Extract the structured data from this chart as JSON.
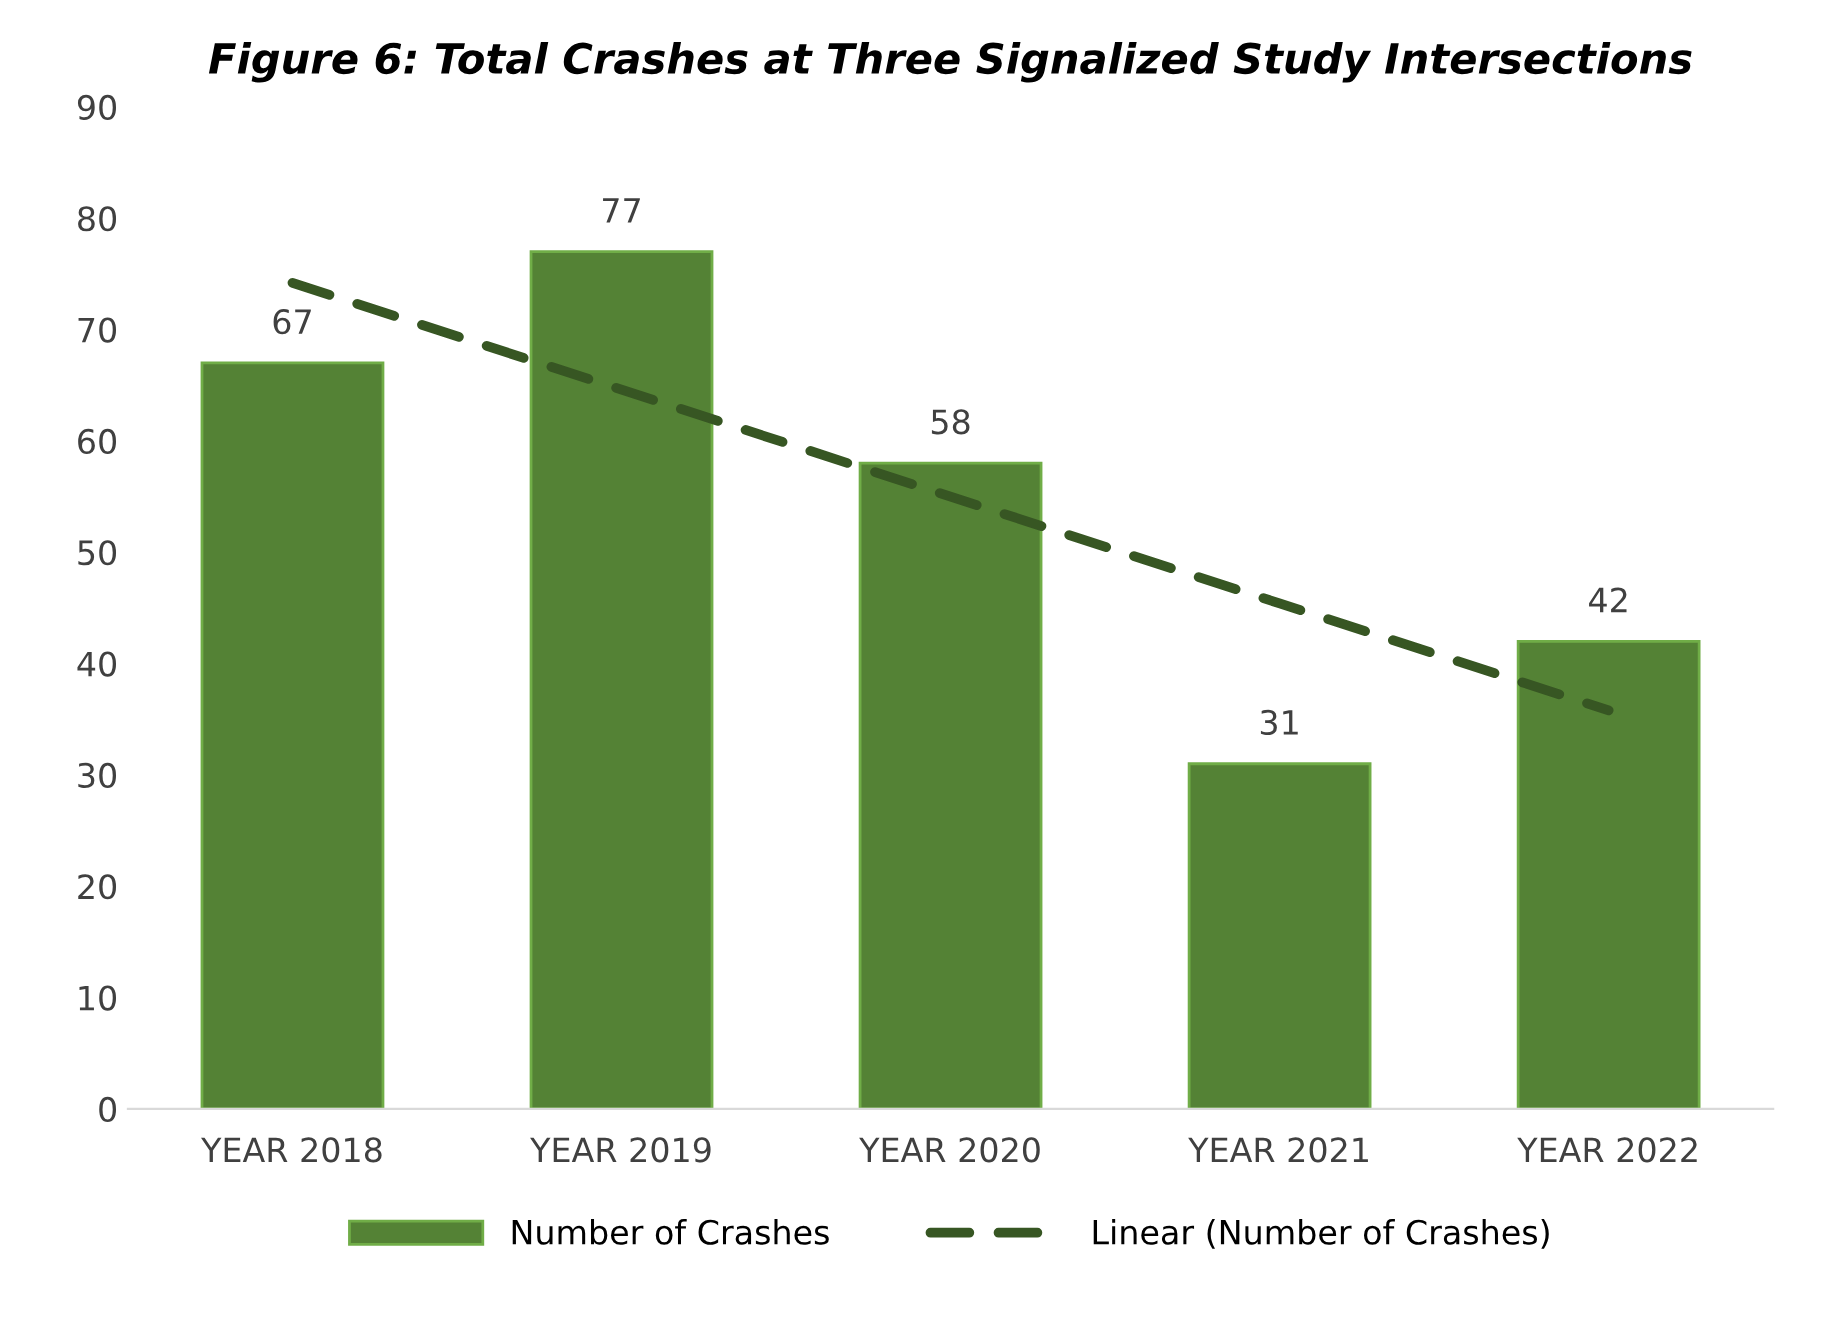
{
  "chart_data": {
    "type": "bar",
    "title": "Figure 6: Total Crashes at Three Signalized Study Intersections",
    "categories": [
      "YEAR 2018",
      "YEAR 2019",
      "YEAR 2020",
      "YEAR 2021",
      "YEAR 2022"
    ],
    "series": [
      {
        "name": "Number of Crashes",
        "color": "#548235",
        "values": [
          67,
          77,
          58,
          31,
          42
        ],
        "value_labels": [
          "67",
          "77",
          "58",
          "31",
          "42"
        ]
      },
      {
        "name": "Linear (Number of Crashes)",
        "type": "line",
        "line_style": "dashed",
        "color": "#375623",
        "values": [
          74.2,
          64.6,
          55,
          45.4,
          35.8
        ]
      }
    ],
    "ylim": [
      0,
      90
    ],
    "yticks": [
      0,
      10,
      20,
      30,
      40,
      50,
      60,
      70,
      80,
      90
    ],
    "grid": false,
    "legend": "bottom"
  }
}
